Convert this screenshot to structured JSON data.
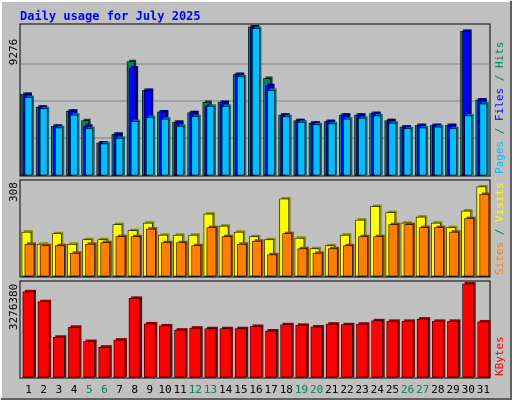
{
  "chart_data": {
    "type": "bar",
    "title": "Daily usage for July 2025",
    "categories": [
      "1",
      "2",
      "3",
      "4",
      "5",
      "6",
      "7",
      "8",
      "9",
      "10",
      "11",
      "12",
      "13",
      "14",
      "15",
      "16",
      "17",
      "18",
      "19",
      "20",
      "21",
      "22",
      "23",
      "24",
      "25",
      "26",
      "27",
      "28",
      "29",
      "30",
      "31"
    ],
    "weekend_days": [
      "5",
      "6",
      "12",
      "13",
      "19",
      "20",
      "26",
      "27"
    ],
    "panels": [
      {
        "id": "hits_files_pages",
        "ymax_label": "9276",
        "ymax": 9276,
        "legend": [
          {
            "text": "Hits",
            "color": "#00805c"
          },
          {
            "text": "Files",
            "color": "#0000ff"
          },
          {
            "text": "Pages",
            "color": "#00c0ff"
          }
        ],
        "series": [
          {
            "name": "Hits",
            "color": "#00805c",
            "values": [
              5050,
              4250,
              3050,
              4000,
              3400,
              2000,
              2550,
              7100,
              5300,
              3950,
              3300,
              3900,
              4550,
              4550,
              6300,
              9276,
              6050,
              3750,
              3400,
              3250,
              3350,
              3750,
              3750,
              3850,
              3400,
              3000,
              3100,
              3100,
              3100,
              9000,
              4700
            ]
          },
          {
            "name": "Files",
            "color": "#0000ff",
            "values": [
              5050,
              4250,
              3050,
              4000,
              3050,
              2000,
              2550,
              6700,
              5300,
              3950,
              3300,
              3900,
              4300,
              4550,
              6300,
              9276,
              5600,
              3750,
              3400,
              3250,
              3350,
              3750,
              3750,
              3850,
              3400,
              3000,
              3100,
              3100,
              3100,
              9000,
              4700
            ]
          },
          {
            "name": "Pages",
            "color": "#00c0ff",
            "values": [
              4850,
              4150,
              2950,
              3750,
              2900,
              1950,
              2300,
              3350,
              3600,
              3500,
              3050,
              3650,
              4300,
              4300,
              6150,
              9176,
              5300,
              3650,
              3300,
              3150,
              3200,
              3500,
              3550,
              3700,
              3250,
              2900,
              2950,
              3000,
              2900,
              3700,
              4450
            ]
          }
        ]
      },
      {
        "id": "visits_sites",
        "ymax_label": "308",
        "ymax": 308,
        "legend": [
          {
            "text": "Visits",
            "color": "#ffff00"
          },
          {
            "text": "Sites",
            "color": "#ff8000"
          }
        ],
        "series": [
          {
            "name": "Visits",
            "color": "#ffff00",
            "values": [
              145,
              105,
              140,
              105,
              120,
              120,
              170,
              150,
              175,
              135,
              135,
              135,
              205,
              165,
              145,
              130,
              120,
              255,
              125,
              90,
              100,
              135,
              185,
              230,
              210,
              175,
              195,
              175,
              160,
              215,
              295
            ]
          },
          {
            "name": "Sites",
            "color": "#ff8000",
            "values": [
              105,
              100,
              100,
              75,
              105,
              110,
              130,
              130,
              155,
              110,
              110,
              100,
              160,
              130,
              105,
              115,
              70,
              140,
              90,
              75,
              90,
              100,
              130,
              130,
              170,
              170,
              160,
              160,
              145,
              190,
              270
            ]
          }
        ]
      },
      {
        "id": "kbytes",
        "ymax_label": "3276380",
        "ymax": 3276380,
        "legend": [
          {
            "text": "KBytes",
            "color": "#ff0000"
          }
        ],
        "series": [
          {
            "name": "KBytes",
            "color": "#ff0000",
            "values": [
              3000000,
              2650000,
              1400000,
              1750000,
              1250000,
              1050000,
              1300000,
              2770000,
              1870000,
              1800000,
              1650000,
              1720000,
              1700000,
              1700000,
              1700000,
              1780000,
              1620000,
              1840000,
              1820000,
              1760000,
              1860000,
              1840000,
              1860000,
              1980000,
              1960000,
              1960000,
              2040000,
              1960000,
              1960000,
              3276380,
              1940000
            ]
          }
        ]
      }
    ]
  },
  "colors": {
    "background": "#c0c0c0",
    "title": "#0000ff",
    "weekday_label": "#000000",
    "weekend_label": "#00805c",
    "separator": "#00805c"
  }
}
